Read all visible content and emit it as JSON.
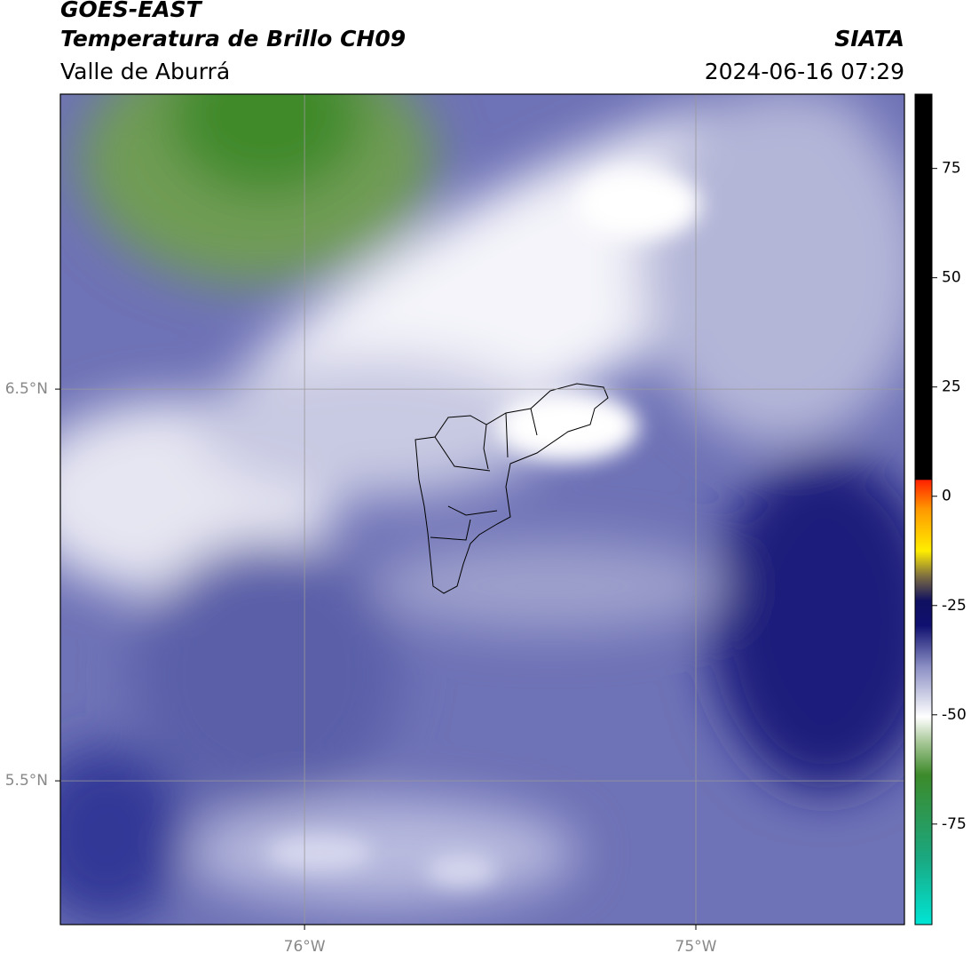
{
  "header": {
    "title": "GOES-EAST",
    "subtitle": "Temperatura de Brillo CH09",
    "source": "SIATA",
    "region": "Valle de Aburrá",
    "datetime": "2024-06-16 07:29"
  },
  "map": {
    "xlim": [
      -76.624,
      -74.467
    ],
    "ylim": [
      5.133,
      7.253
    ],
    "xticks": [
      {
        "value": -76,
        "label": "76°W"
      },
      {
        "value": -75,
        "label": "75°W"
      }
    ],
    "yticks": [
      {
        "value": 6.5,
        "label": "6.5°N"
      },
      {
        "value": 5.5,
        "label": "5.5°N"
      }
    ]
  },
  "colorbar": {
    "lim": [
      -98,
      92
    ],
    "ticks": [
      75,
      50,
      25,
      0,
      -25,
      -50,
      -75
    ]
  }
}
